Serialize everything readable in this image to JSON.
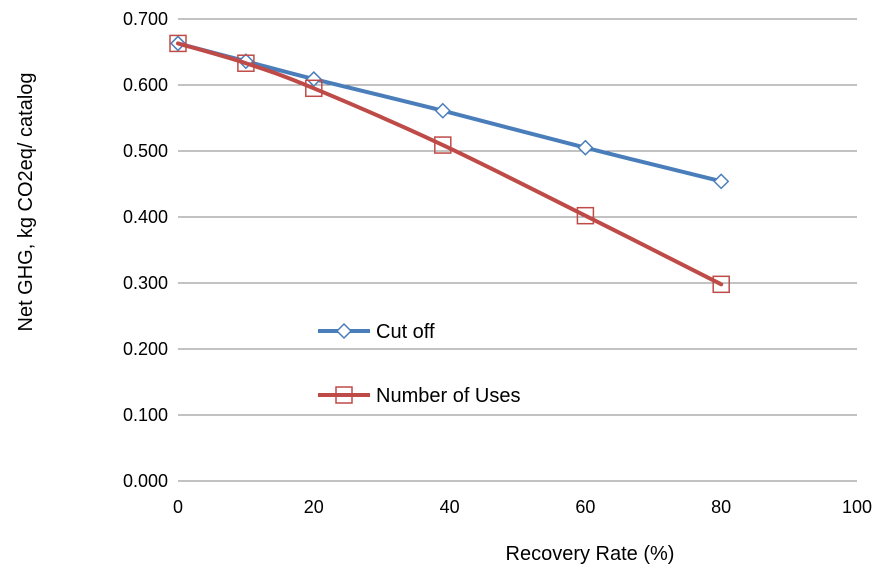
{
  "chart_data": {
    "type": "line",
    "title": "",
    "xlabel": "Recovery Rate (%)",
    "ylabel": "Net GHG, kg CO2eq/ catalog",
    "xlim": [
      0,
      100
    ],
    "ylim": [
      0,
      0.7
    ],
    "x_ticks": [
      "0",
      "20",
      "40",
      "60",
      "80",
      "100"
    ],
    "y_ticks": [
      "0.000",
      "0.100",
      "0.200",
      "0.300",
      "0.400",
      "0.500",
      "0.600",
      "0.700"
    ],
    "grid": "horizontal",
    "legend_placement": "center-left",
    "series": [
      {
        "name": "Cut off",
        "color": "#4a7ebb",
        "marker": "diamond",
        "x": [
          0,
          10,
          20,
          39,
          60,
          80
        ],
        "y": [
          0.663,
          0.636,
          0.609,
          0.561,
          0.505,
          0.454
        ]
      },
      {
        "name": "Number of Uses",
        "color": "#be4b48",
        "marker": "square",
        "x": [
          0,
          10,
          20,
          39,
          60,
          80
        ],
        "y": [
          0.663,
          0.633,
          0.595,
          0.509,
          0.402,
          0.298
        ]
      }
    ]
  }
}
